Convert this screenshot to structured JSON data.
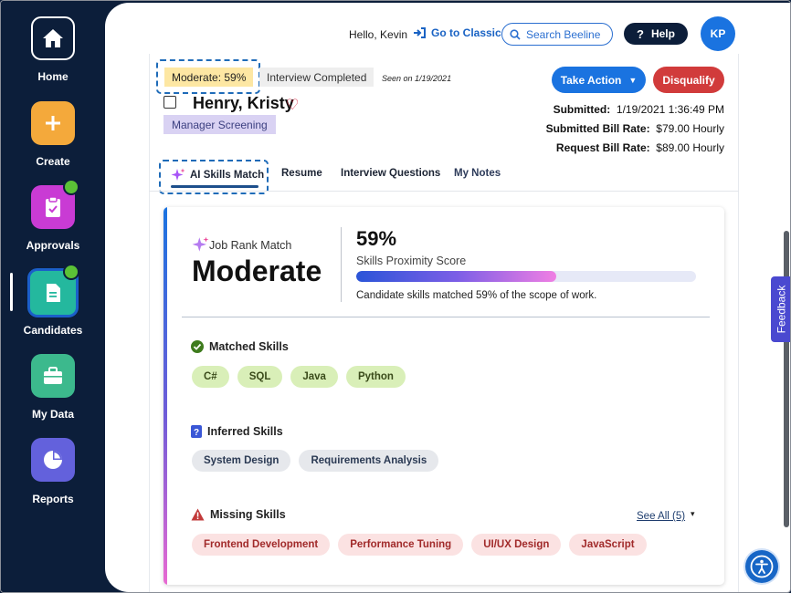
{
  "sidebar": {
    "items": [
      {
        "label": "Home",
        "icon": "home-icon",
        "color": "#0c1e3a"
      },
      {
        "label": "Create",
        "icon": "plus-icon",
        "color": "#f4a93b"
      },
      {
        "label": "Approvals",
        "icon": "clipboard-check-icon",
        "color": "#c93bd4"
      },
      {
        "label": "Candidates",
        "icon": "document-icon",
        "color": "#24b89e"
      },
      {
        "label": "My Data",
        "icon": "briefcase-icon",
        "color": "#3cb98d"
      },
      {
        "label": "Reports",
        "icon": "pie-chart-icon",
        "color": "#6361dc"
      }
    ]
  },
  "topbar": {
    "greeting": "Hello, Kevin",
    "classic_link": "Go to Classic",
    "search_placeholder": "Search Beeline",
    "help_label": "Help",
    "avatar_initials": "KP"
  },
  "candidate": {
    "match_tag": "Moderate: 59%",
    "status_tag": "Interview Completed",
    "seen": "Seen on 1/19/2021",
    "name": "Henry, Kristy",
    "stage": "Manager Screening",
    "take_action": "Take Action",
    "disqualify": "Disqualify",
    "submitted_label": "Submitted:",
    "submitted_value": "1/19/2021 1:36:49 PM",
    "bill_rate_label": "Submitted Bill Rate:",
    "bill_rate_value": "$79.00 Hourly",
    "request_rate_label": "Request Bill Rate:",
    "request_rate_value": "$89.00 Hourly"
  },
  "tabs": [
    {
      "label": "AI Skills Match",
      "active": true
    },
    {
      "label": "Resume"
    },
    {
      "label": "Interview Questions"
    },
    {
      "label": "My Notes"
    }
  ],
  "ai_match": {
    "job_rank_label": "Job Rank Match",
    "job_rank_value": "Moderate",
    "score_pct": "59%",
    "score_fraction": 0.59,
    "score_title": "Skills Proximity Score",
    "score_desc": "Candidate skills matched 59% of the scope of work.",
    "matched_title": "Matched Skills",
    "matched": [
      "C#",
      "SQL",
      "Java",
      "Python"
    ],
    "inferred_title": "Inferred Skills",
    "inferred": [
      "System Design",
      "Requirements Analysis"
    ],
    "missing_title": "Missing Skills",
    "see_all": "See All (5)",
    "missing": [
      "Frontend Development",
      "Performance Tuning",
      "UI/UX Design",
      "JavaScript"
    ]
  },
  "feedback_label": "Feedback"
}
